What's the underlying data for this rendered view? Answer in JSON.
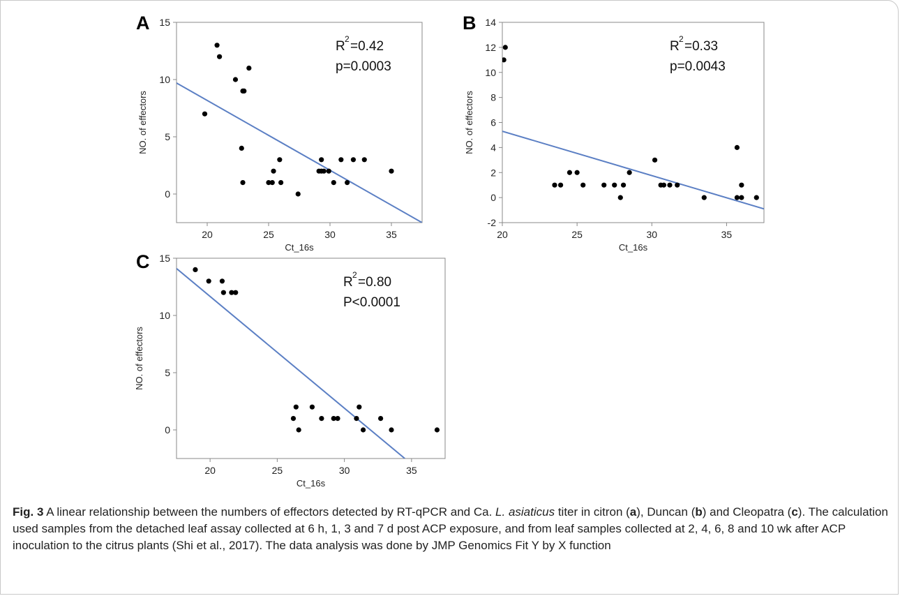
{
  "chart_data": [
    {
      "panel": "A",
      "type": "scatter",
      "xlabel": "Ct_16s",
      "ylabel": "NO. of effectors",
      "xlim": [
        17.5,
        37.5
      ],
      "ylim": [
        -2.5,
        15
      ],
      "xticks": [
        20,
        25,
        30,
        35
      ],
      "yticks": [
        0,
        5,
        10,
        15
      ],
      "grid": false,
      "points": [
        [
          19.8,
          7
        ],
        [
          20.8,
          13
        ],
        [
          21.0,
          12
        ],
        [
          22.3,
          10
        ],
        [
          22.8,
          4
        ],
        [
          22.9,
          1
        ],
        [
          22.9,
          9
        ],
        [
          23.0,
          9
        ],
        [
          23.4,
          11
        ],
        [
          25.0,
          1
        ],
        [
          25.3,
          1
        ],
        [
          25.4,
          2
        ],
        [
          25.9,
          3
        ],
        [
          26.0,
          1
        ],
        [
          27.4,
          0
        ],
        [
          29.1,
          2
        ],
        [
          29.3,
          2
        ],
        [
          29.3,
          3
        ],
        [
          29.5,
          2
        ],
        [
          29.9,
          2
        ],
        [
          30.3,
          1
        ],
        [
          30.9,
          3
        ],
        [
          31.4,
          1
        ],
        [
          31.9,
          3
        ],
        [
          32.8,
          3
        ],
        [
          35.0,
          2
        ]
      ],
      "fit_line": {
        "x0": 17.5,
        "y0": 9.7,
        "x1": 37.5,
        "y1": -2.5
      },
      "stats": {
        "r2_label": "R",
        "r2_sup": "2",
        "r2_value": "=0.42",
        "p": "p=0.0003"
      }
    },
    {
      "panel": "B",
      "type": "scatter",
      "xlabel": "Ct_16s",
      "ylabel": "NO. of effectors",
      "xlim": [
        20,
        37.5
      ],
      "ylim": [
        -2,
        14
      ],
      "xticks": [
        20,
        25,
        30,
        35
      ],
      "yticks": [
        -2,
        0,
        2,
        4,
        6,
        8,
        10,
        12,
        14
      ],
      "grid": false,
      "points": [
        [
          20.1,
          11
        ],
        [
          20.2,
          12
        ],
        [
          23.5,
          1
        ],
        [
          23.9,
          1
        ],
        [
          24.5,
          2
        ],
        [
          25.0,
          2
        ],
        [
          25.4,
          1
        ],
        [
          26.8,
          1
        ],
        [
          27.5,
          1
        ],
        [
          27.9,
          0
        ],
        [
          28.1,
          1
        ],
        [
          28.5,
          2
        ],
        [
          30.2,
          3
        ],
        [
          30.6,
          1
        ],
        [
          30.8,
          1
        ],
        [
          31.2,
          1
        ],
        [
          31.7,
          1
        ],
        [
          33.5,
          0
        ],
        [
          35.7,
          4
        ],
        [
          35.7,
          0
        ],
        [
          36.0,
          0
        ],
        [
          36.0,
          1
        ],
        [
          37.0,
          0
        ]
      ],
      "fit_line": {
        "x0": 20,
        "y0": 5.3,
        "x1": 37.5,
        "y1": -0.9
      },
      "stats": {
        "r2_label": "R",
        "r2_sup": "2",
        "r2_value": "=0.33",
        "p": "p=0.0043"
      }
    },
    {
      "panel": "C",
      "type": "scatter",
      "xlabel": "Ct_16s",
      "ylabel": "NO. of effectors",
      "xlim": [
        17.5,
        37.5
      ],
      "ylim": [
        -2.5,
        15
      ],
      "xticks": [
        20,
        25,
        30,
        35
      ],
      "yticks": [
        0,
        5,
        10,
        15
      ],
      "grid": false,
      "points": [
        [
          18.9,
          14
        ],
        [
          19.9,
          13
        ],
        [
          20.9,
          13
        ],
        [
          21.0,
          12
        ],
        [
          21.6,
          12
        ],
        [
          21.9,
          12
        ],
        [
          26.2,
          1
        ],
        [
          26.4,
          2
        ],
        [
          26.6,
          0
        ],
        [
          27.6,
          2
        ],
        [
          28.3,
          1
        ],
        [
          29.2,
          1
        ],
        [
          29.5,
          1
        ],
        [
          30.9,
          1
        ],
        [
          31.1,
          2
        ],
        [
          31.4,
          0
        ],
        [
          32.7,
          1
        ],
        [
          33.5,
          0
        ],
        [
          36.9,
          0
        ]
      ],
      "fit_line": {
        "x0": 17.5,
        "y0": 14.1,
        "x1": 34.5,
        "y1": -2.5
      },
      "stats": {
        "r2_label": "R",
        "r2_sup": "2",
        "r2_value": "=0.80",
        "p": "P<0.0001"
      }
    }
  ],
  "caption": {
    "fig_label": "Fig. 3",
    "text_1": " A linear relationship between the numbers of effectors detected by RT-qPCR and Ca. ",
    "species": "L. asiaticus",
    "text_2": " titer in citron (",
    "a": "a",
    "text_3": "), Duncan (",
    "b": "b",
    "text_4": ") and Cleopatra (",
    "c": "c",
    "text_5": "). The calculation used samples from the detached leaf assay collected at 6 h, 1, 3 and 7 d post ACP exposure, and from leaf samples collected at 2, 4, 6, 8 and 10 wk after ACP inoculation to the citrus plants (Shi et al., 2017). The data analysis was done by JMP Genomics Fit Y by X function"
  },
  "colors": {
    "fit_line": "#5b7fc4",
    "point": "#000000",
    "axis": "#888888",
    "frame": "#c8c8c8"
  }
}
